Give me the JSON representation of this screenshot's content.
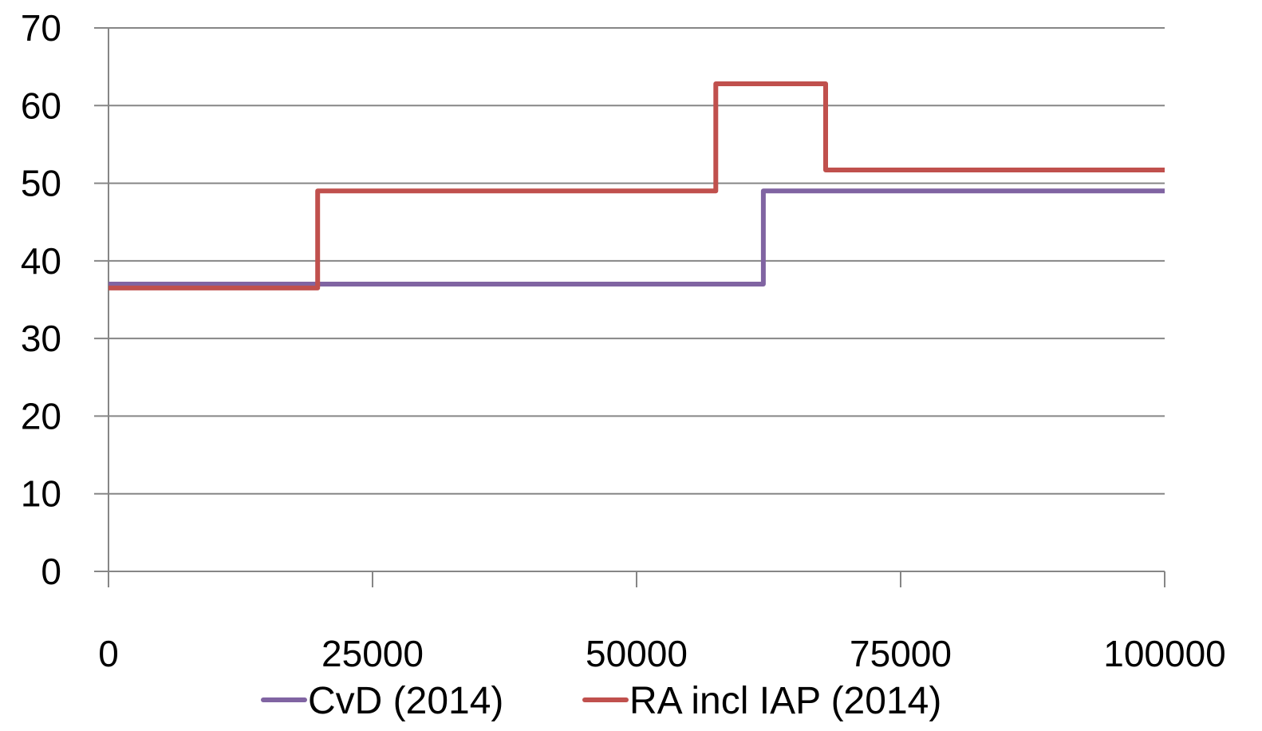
{
  "chart_data": {
    "type": "line",
    "step": true,
    "x_ticks": [
      0,
      25000,
      50000,
      75000,
      100000
    ],
    "x_tick_labels": [
      "0",
      "25000",
      "50000",
      "75000",
      "100000"
    ],
    "y_ticks": [
      0,
      10,
      20,
      30,
      40,
      50,
      60,
      70
    ],
    "y_tick_labels": [
      "0",
      "10",
      "20",
      "30",
      "40",
      "50",
      "60",
      "70"
    ],
    "xlim": [
      0,
      100000
    ],
    "ylim": [
      0,
      70
    ],
    "grid": "horizontal",
    "legend_position": "bottom",
    "series": [
      {
        "name": "CvD (2014)",
        "color": "#8064A2",
        "x": [
          0,
          62000,
          62000,
          100000
        ],
        "y": [
          37,
          37,
          49,
          49
        ]
      },
      {
        "name": "RA incl IAP (2014)",
        "color": "#C0504D",
        "x": [
          0,
          19800,
          19800,
          57500,
          57500,
          67900,
          67900,
          100000
        ],
        "y": [
          36.5,
          36.5,
          49,
          49,
          62.8,
          62.8,
          51.7,
          51.7
        ]
      }
    ]
  }
}
